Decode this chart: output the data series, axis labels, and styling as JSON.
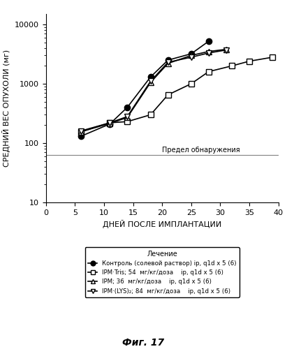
{
  "title": "",
  "xlabel": "ДНЕЙ ПОСЛЕ ИМПЛАНТАЦИИ",
  "ylabel": "СРЕДНИЙ ВЕС ОПУХОЛИ (мг)",
  "fig_label": "Фиг. 17",
  "detection_limit": 63,
  "detection_limit_label": "Предел обнаружения",
  "legend_title": "Лечение",
  "xlim": [
    0,
    40
  ],
  "ylim_log": [
    10,
    15000
  ],
  "xticks": [
    0,
    5,
    10,
    15,
    20,
    25,
    30,
    35,
    40
  ],
  "series": [
    {
      "label": "Контроль (солевой раствор) ip, q1d x 5 (6)",
      "x": [
        6,
        11,
        14,
        18,
        21,
        25,
        28
      ],
      "y": [
        130,
        210,
        400,
        1300,
        2500,
        3200,
        5200
      ],
      "marker": "o",
      "markerfacecolor": "black",
      "markeredgecolor": "black",
      "linestyle": "-",
      "color": "black",
      "markersize": 6
    },
    {
      "label": "IPM·Tris; 54  мг/кг/доза    ip, q1d x 5 (6)",
      "x": [
        6,
        11,
        14,
        18,
        21,
        25,
        28,
        32,
        35,
        39
      ],
      "y": [
        155,
        220,
        230,
        300,
        650,
        1000,
        1600,
        2000,
        2400,
        2800
      ],
      "marker": "s",
      "markerfacecolor": "white",
      "markeredgecolor": "black",
      "linestyle": "-",
      "color": "black",
      "markersize": 6
    },
    {
      "label": "IPM; 36  мг/кг/доза    ip, q1d x 5 (6)",
      "x": [
        6,
        11,
        14,
        18,
        21,
        25,
        28,
        31
      ],
      "y": [
        155,
        215,
        270,
        1050,
        2200,
        3000,
        3500,
        3800
      ],
      "marker": "^",
      "markerfacecolor": "white",
      "markeredgecolor": "black",
      "linestyle": "-",
      "color": "black",
      "markersize": 6
    },
    {
      "label": "IPM·(LYS)₂; 84  мг/кг/доза    ip, q1d x 5 (6)",
      "x": [
        6,
        11,
        14,
        18,
        21,
        25,
        28,
        31
      ],
      "y": [
        160,
        220,
        280,
        1100,
        2300,
        2800,
        3300,
        3700
      ],
      "marker": "v",
      "markerfacecolor": "white",
      "markeredgecolor": "black",
      "linestyle": "-",
      "color": "black",
      "markersize": 6
    }
  ]
}
